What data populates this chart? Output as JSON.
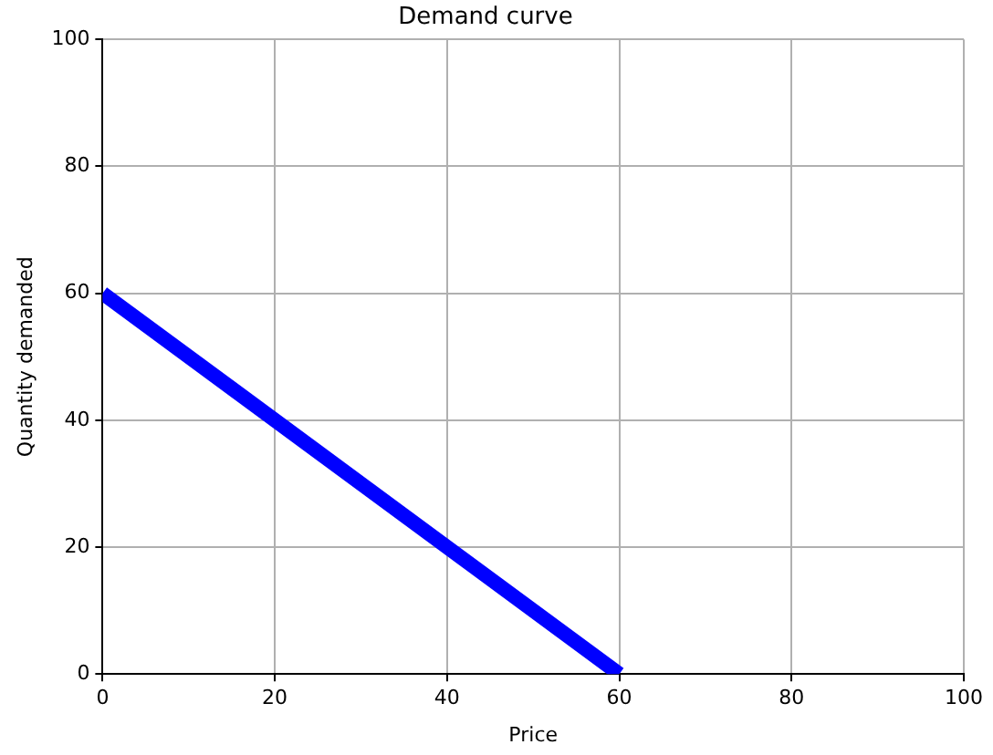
{
  "chart_data": {
    "type": "line",
    "title": "Demand curve",
    "xlabel": "Price",
    "ylabel": "Quantity demanded",
    "x": [
      0,
      60
    ],
    "series": [
      {
        "color": "#0000ff",
        "values": [
          60,
          0
        ]
      }
    ],
    "xlim": [
      0,
      100
    ],
    "ylim": [
      0,
      100
    ],
    "xticks": [
      0,
      20,
      40,
      60,
      80,
      100
    ],
    "yticks": [
      0,
      20,
      40,
      60,
      80,
      100
    ],
    "grid": true,
    "legend": false,
    "marker": "none",
    "line_style": "solid"
  }
}
